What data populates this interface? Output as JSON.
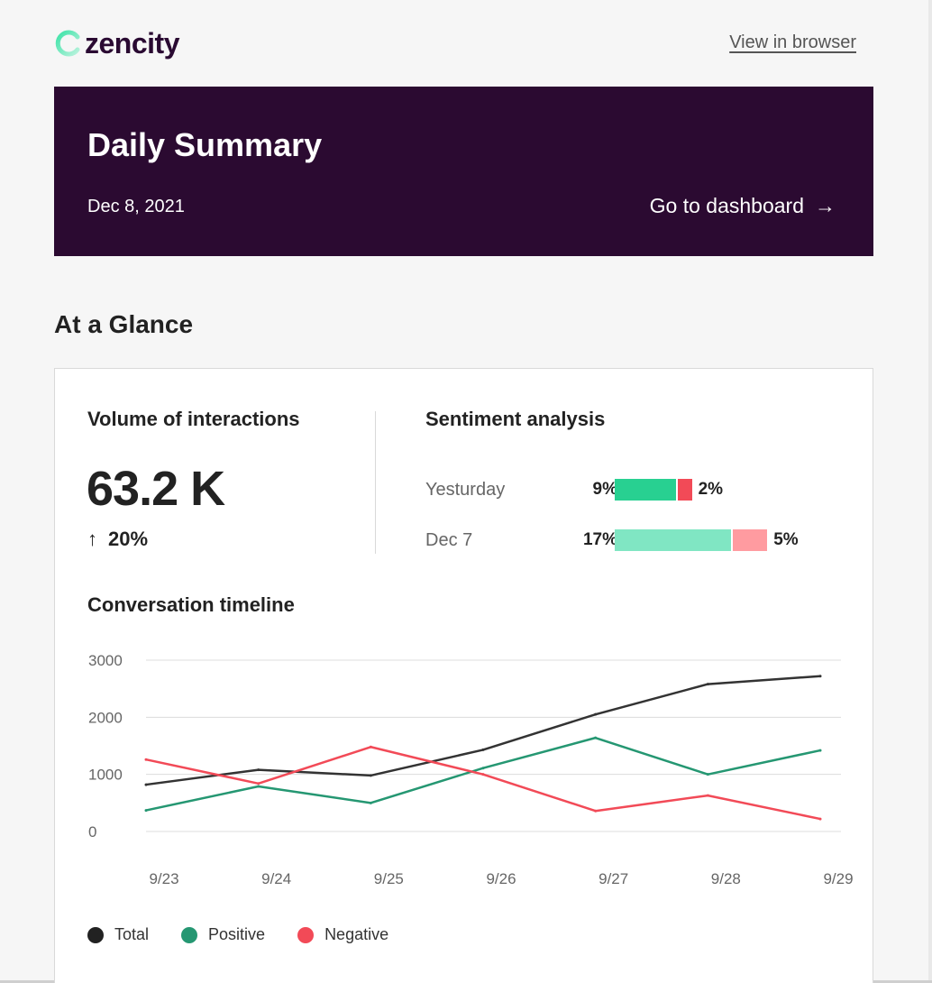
{
  "brand": {
    "name": "zencity",
    "logo_icon": "zencity-logo-icon"
  },
  "header": {
    "view_in_browser": "View in browser"
  },
  "banner": {
    "title": "Daily Summary",
    "date": "Dec 8, 2021",
    "dashboard_link": "Go to dashboard",
    "arrow": "→"
  },
  "at_a_glance": {
    "title": "At a Glance"
  },
  "volume": {
    "title": "Volume of interactions",
    "value": "63.2 K",
    "change_arrow": "↑",
    "change": "20%"
  },
  "sentiment": {
    "title": "Sentiment analysis",
    "rows": [
      {
        "label": "Yesturday",
        "positive_pct": "9%",
        "negative_pct": "2%",
        "positive": 9,
        "negative": 2,
        "pos_color": "#28d091",
        "neg_color": "#f24a57"
      },
      {
        "label": "Dec 7",
        "positive_pct": "17%",
        "negative_pct": "5%",
        "positive": 17,
        "negative": 5,
        "pos_color": "#80e6c3",
        "neg_color": "#ff9ba0"
      }
    ]
  },
  "timeline": {
    "title": "Conversation timeline"
  },
  "chart_data": {
    "type": "line",
    "categories": [
      "9/23",
      "9/24",
      "9/25",
      "9/26",
      "9/27",
      "9/28",
      "9/29"
    ],
    "ylim": [
      0,
      3000
    ],
    "yticks": [
      "3000",
      "2000",
      "1000",
      "0"
    ],
    "ytick_values": [
      3000,
      2000,
      1000,
      0
    ],
    "grid": true,
    "legend_position": "bottom-left",
    "series": [
      {
        "name": "Total",
        "color": "#333333",
        "values": [
          820,
          1080,
          980,
          1430,
          2050,
          2580,
          2720
        ]
      },
      {
        "name": "Positive",
        "color": "#259772",
        "values": [
          370,
          790,
          500,
          1110,
          1640,
          1000,
          1420
        ]
      },
      {
        "name": "Negative",
        "color": "#f24a57",
        "values": [
          1260,
          840,
          1480,
          1000,
          360,
          630,
          220
        ]
      }
    ]
  }
}
